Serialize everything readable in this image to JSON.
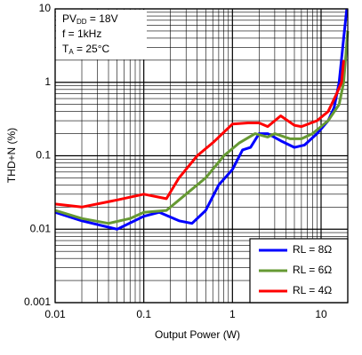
{
  "chart_data": {
    "type": "line",
    "xlabel": "Output Power (W)",
    "ylabel": "THD+N (%)",
    "annotations": [
      [
        "PV",
        "DD",
        " = 18V"
      ],
      [
        "f = 1kHz"
      ],
      [
        "T",
        "A",
        " = 25°C"
      ]
    ],
    "xscale": "log",
    "yscale": "log",
    "xlim": [
      0.01,
      20
    ],
    "ylim": [
      0.001,
      10
    ],
    "xticks": [
      0.01,
      0.1,
      1,
      10
    ],
    "yticks": [
      0.001,
      0.01,
      0.1,
      1,
      10
    ],
    "grid": "major and minor",
    "legend": "lower right",
    "series": [
      {
        "name": "RL = 8Ω",
        "color": "#0000ff",
        "x": [
          0.01,
          0.02,
          0.05,
          0.1,
          0.15,
          0.25,
          0.35,
          0.5,
          0.7,
          1,
          1.3,
          1.6,
          2,
          2.5,
          3.5,
          5,
          6.5,
          9,
          12,
          14,
          16,
          18,
          19.5
        ],
        "values": [
          0.017,
          0.013,
          0.01,
          0.015,
          0.017,
          0.013,
          0.012,
          0.018,
          0.04,
          0.065,
          0.12,
          0.13,
          0.2,
          0.2,
          0.16,
          0.13,
          0.14,
          0.2,
          0.3,
          0.45,
          1,
          4,
          10
        ]
      },
      {
        "name": "RL = 6Ω",
        "color": "#669933",
        "x": [
          0.01,
          0.02,
          0.04,
          0.07,
          0.1,
          0.18,
          0.25,
          0.35,
          0.5,
          0.8,
          1.2,
          1.8,
          2.5,
          3,
          4.5,
          6,
          8,
          12,
          16,
          18,
          20
        ],
        "values": [
          0.018,
          0.014,
          0.012,
          0.014,
          0.017,
          0.018,
          0.025,
          0.035,
          0.05,
          0.1,
          0.15,
          0.2,
          0.18,
          0.2,
          0.17,
          0.17,
          0.2,
          0.3,
          0.5,
          1,
          5
        ]
      },
      {
        "name": "RL = 4Ω",
        "color": "#ff0000",
        "x": [
          0.01,
          0.02,
          0.05,
          0.1,
          0.18,
          0.25,
          0.4,
          0.6,
          1,
          1.5,
          2,
          2.5,
          3.5,
          5,
          6,
          9,
          12,
          15,
          17,
          18
        ],
        "values": [
          0.022,
          0.02,
          0.025,
          0.03,
          0.026,
          0.05,
          0.1,
          0.15,
          0.27,
          0.28,
          0.28,
          0.25,
          0.35,
          0.26,
          0.25,
          0.3,
          0.4,
          0.7,
          1,
          2
        ]
      }
    ]
  }
}
